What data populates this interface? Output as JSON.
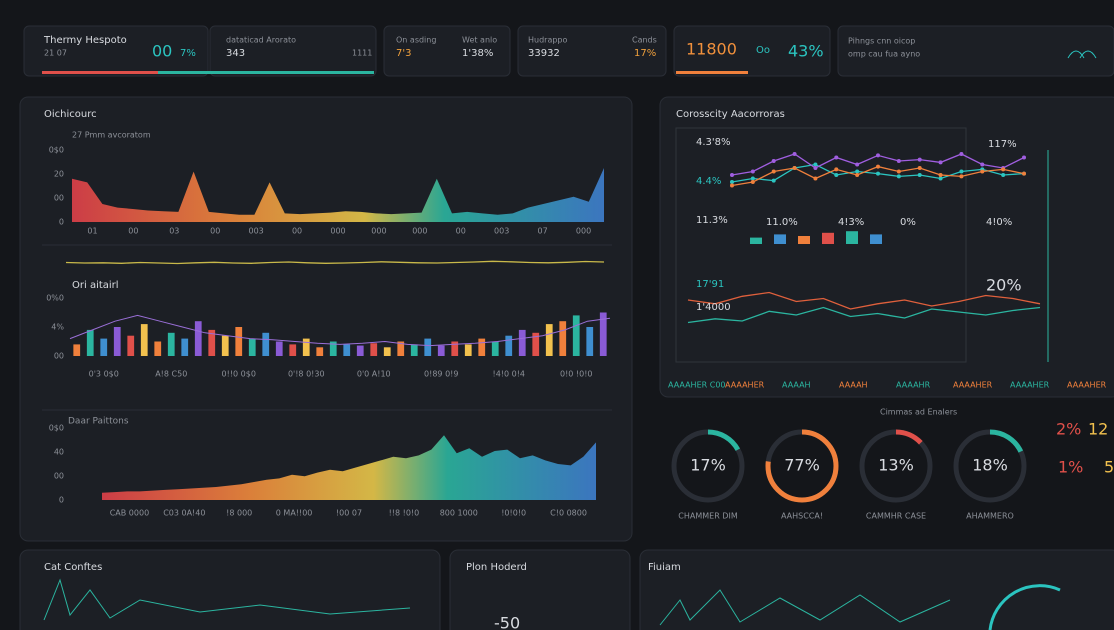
{
  "top_cards": [
    {
      "title": "Thermy Hespoto",
      "sub": "21 07",
      "value": "00",
      "extra": "7%"
    },
    {
      "title": "dataticad Arorato",
      "value": "343",
      "extra": "1111"
    },
    {
      "title": "On asding",
      "value": "7'3",
      "extra": "1'38%",
      "note": "Wet anlo"
    },
    {
      "title": "Hudrappo",
      "value": "33932",
      "extra": "17%",
      "note": "Cands"
    },
    {
      "value": "11800",
      "extra": "43%",
      "note": "Oo"
    },
    {
      "title": "Pihngs cnn oicop",
      "sub": "omp cau fua ayno"
    }
  ],
  "left_panel": {
    "title": "Oichicourc",
    "subtitle": "27 Pmm avcoratom",
    "section_b": "Ori aitairl",
    "section_d": "Daar Paittons"
  },
  "chart_a": {
    "type": "area",
    "values": [
      60,
      55,
      25,
      20,
      18,
      16,
      15,
      14,
      70,
      14,
      12,
      10,
      10,
      55,
      12,
      11,
      12,
      13,
      15,
      14,
      12,
      11,
      12,
      13,
      60,
      12,
      14,
      12,
      10,
      12,
      20,
      25,
      30,
      35,
      28,
      75
    ],
    "ylim": [
      0,
      100
    ],
    "y_labels": [
      "0$0",
      "20",
      "00",
      "0"
    ],
    "x_labels": [
      "01",
      "00",
      "03",
      "00",
      "003",
      "00",
      "000",
      "000",
      "000",
      "00",
      "003",
      "07",
      "000"
    ]
  },
  "chart_b": {
    "type": "line",
    "color": "#c9b94a",
    "values": [
      50,
      48,
      49,
      47,
      50,
      48,
      46,
      49,
      51,
      48,
      47,
      50,
      52,
      49,
      47,
      48,
      50,
      53,
      51,
      49,
      48,
      50,
      52,
      55,
      53,
      50,
      49,
      51,
      54,
      52
    ],
    "ylim": [
      0,
      100
    ]
  },
  "chart_c": {
    "type": "bar",
    "values": [
      20,
      45,
      30,
      50,
      35,
      55,
      25,
      40,
      30,
      60,
      45,
      35,
      50,
      30,
      40,
      25,
      20,
      30,
      15,
      25,
      20,
      18,
      22,
      15,
      25,
      20,
      30,
      18,
      25,
      20,
      30,
      25,
      35,
      45,
      40,
      55,
      60,
      70,
      50,
      75
    ],
    "colors": [
      "#f0803c",
      "#2bb5a0",
      "#3f8fd0",
      "#8a5bd6",
      "#e0504a",
      "#f2c14e"
    ],
    "line": [
      30,
      45,
      60,
      70,
      60,
      50,
      40,
      35,
      30,
      28,
      25,
      22,
      20,
      22,
      25,
      20,
      18,
      20,
      22,
      25,
      30,
      35,
      45,
      60,
      65
    ],
    "line_color": "#9a6fd8",
    "ylim": [
      0,
      100
    ],
    "y_labels": [
      "0%0",
      "4%",
      "00"
    ],
    "x_labels": [
      "0'3 0$0",
      "A!8 C50",
      "0!!0 0$0",
      "0'!8 0!30",
      "0'0 A!10",
      "0!89 0!9",
      "!4!0 0!4",
      "0!0 !0!0"
    ]
  },
  "chart_d": {
    "type": "area",
    "values": [
      10,
      11,
      12,
      12,
      13,
      14,
      15,
      16,
      17,
      18,
      20,
      22,
      25,
      28,
      30,
      35,
      33,
      38,
      42,
      40,
      45,
      50,
      55,
      60,
      58,
      62,
      70,
      90,
      65,
      72,
      60,
      68,
      70,
      58,
      62,
      55,
      50,
      48,
      60,
      80
    ],
    "ylim": [
      0,
      100
    ],
    "y_labels": [
      "0$0",
      "40",
      "00",
      "0"
    ],
    "x_labels": [
      "CAB 0000",
      "C03 0A!40",
      "!8 000",
      "0 MA!!00",
      "!00 07",
      "!!8 !0!0",
      "800 1000",
      "!0!0!0",
      "C!0 0800"
    ]
  },
  "right_panel": {
    "title": "Corosscity Aacorroras",
    "side_labels": [
      "4.3'8%",
      "4.4%",
      "11.3%",
      "17'91",
      "1'4000"
    ],
    "mid_labels": [
      "11.0%",
      "4!3%",
      "0%",
      "4!0%"
    ],
    "right_labels": [
      "117%",
      "20%"
    ],
    "legend": [
      "AAAAHER C00",
      "AAAAHER",
      "AAAAH",
      "AAAAH",
      "AAAAHR",
      "AAAAHER",
      "AAAAHER",
      "AAAAHER"
    ]
  },
  "chart_r": {
    "type": "line",
    "series": [
      {
        "name": "cyan",
        "color": "#2bc4c0",
        "values": [
          40,
          45,
          42,
          60,
          65,
          50,
          55,
          52,
          48,
          50,
          45,
          55,
          58,
          50,
          52
        ]
      },
      {
        "name": "purple",
        "color": "#a05ee0",
        "values": [
          50,
          55,
          70,
          80,
          60,
          75,
          65,
          78,
          70,
          72,
          68,
          80,
          65,
          60,
          75
        ]
      },
      {
        "name": "orange",
        "color": "#f0803c",
        "values": [
          35,
          40,
          55,
          60,
          45,
          58,
          50,
          62,
          55,
          60,
          50,
          48,
          55,
          58,
          52
        ]
      }
    ],
    "ylim": [
      0,
      100
    ]
  },
  "chart_rb": {
    "type": "bar",
    "values": [
      20,
      30,
      25,
      35,
      40,
      30
    ],
    "colors": [
      "#2bb5a0",
      "#3f8fd0",
      "#f0803c",
      "#e0504a"
    ],
    "ylim": [
      0,
      100
    ]
  },
  "chart_r2": {
    "type": "line",
    "series": [
      {
        "name": "green",
        "color": "#2bb5a0",
        "values": [
          30,
          35,
          32,
          45,
          40,
          50,
          38,
          42,
          36,
          48,
          44,
          40,
          46,
          50
        ]
      },
      {
        "name": "orange",
        "color": "#e0603c",
        "values": [
          60,
          55,
          65,
          70,
          58,
          62,
          48,
          55,
          60,
          52,
          58,
          66,
          62,
          55
        ]
      }
    ],
    "ylim": [
      0,
      100
    ]
  },
  "gauges_title": "Cimmas ad Enalers",
  "gauges": [
    {
      "value": 17,
      "label": "17%",
      "caption": "CHAMMER DIM",
      "color": "#2bb5a0"
    },
    {
      "value": 77,
      "label": "77%",
      "caption": "AAHSCCA!",
      "color": "#f0803c"
    },
    {
      "value": 13,
      "label": "13%",
      "caption": "CAMMHR CASE",
      "color": "#e0504a"
    },
    {
      "value": 18,
      "label": "18%",
      "caption": "AHAMMERO",
      "color": "#2bb5a0"
    }
  ],
  "edge_labels": [
    "2%",
    "12",
    "1%",
    "5"
  ],
  "bottom_panels": [
    {
      "title": "Cat Conftes"
    },
    {
      "title": "Plon Hoderd",
      "value": "-50"
    },
    {
      "title": "Fiuiam"
    }
  ]
}
